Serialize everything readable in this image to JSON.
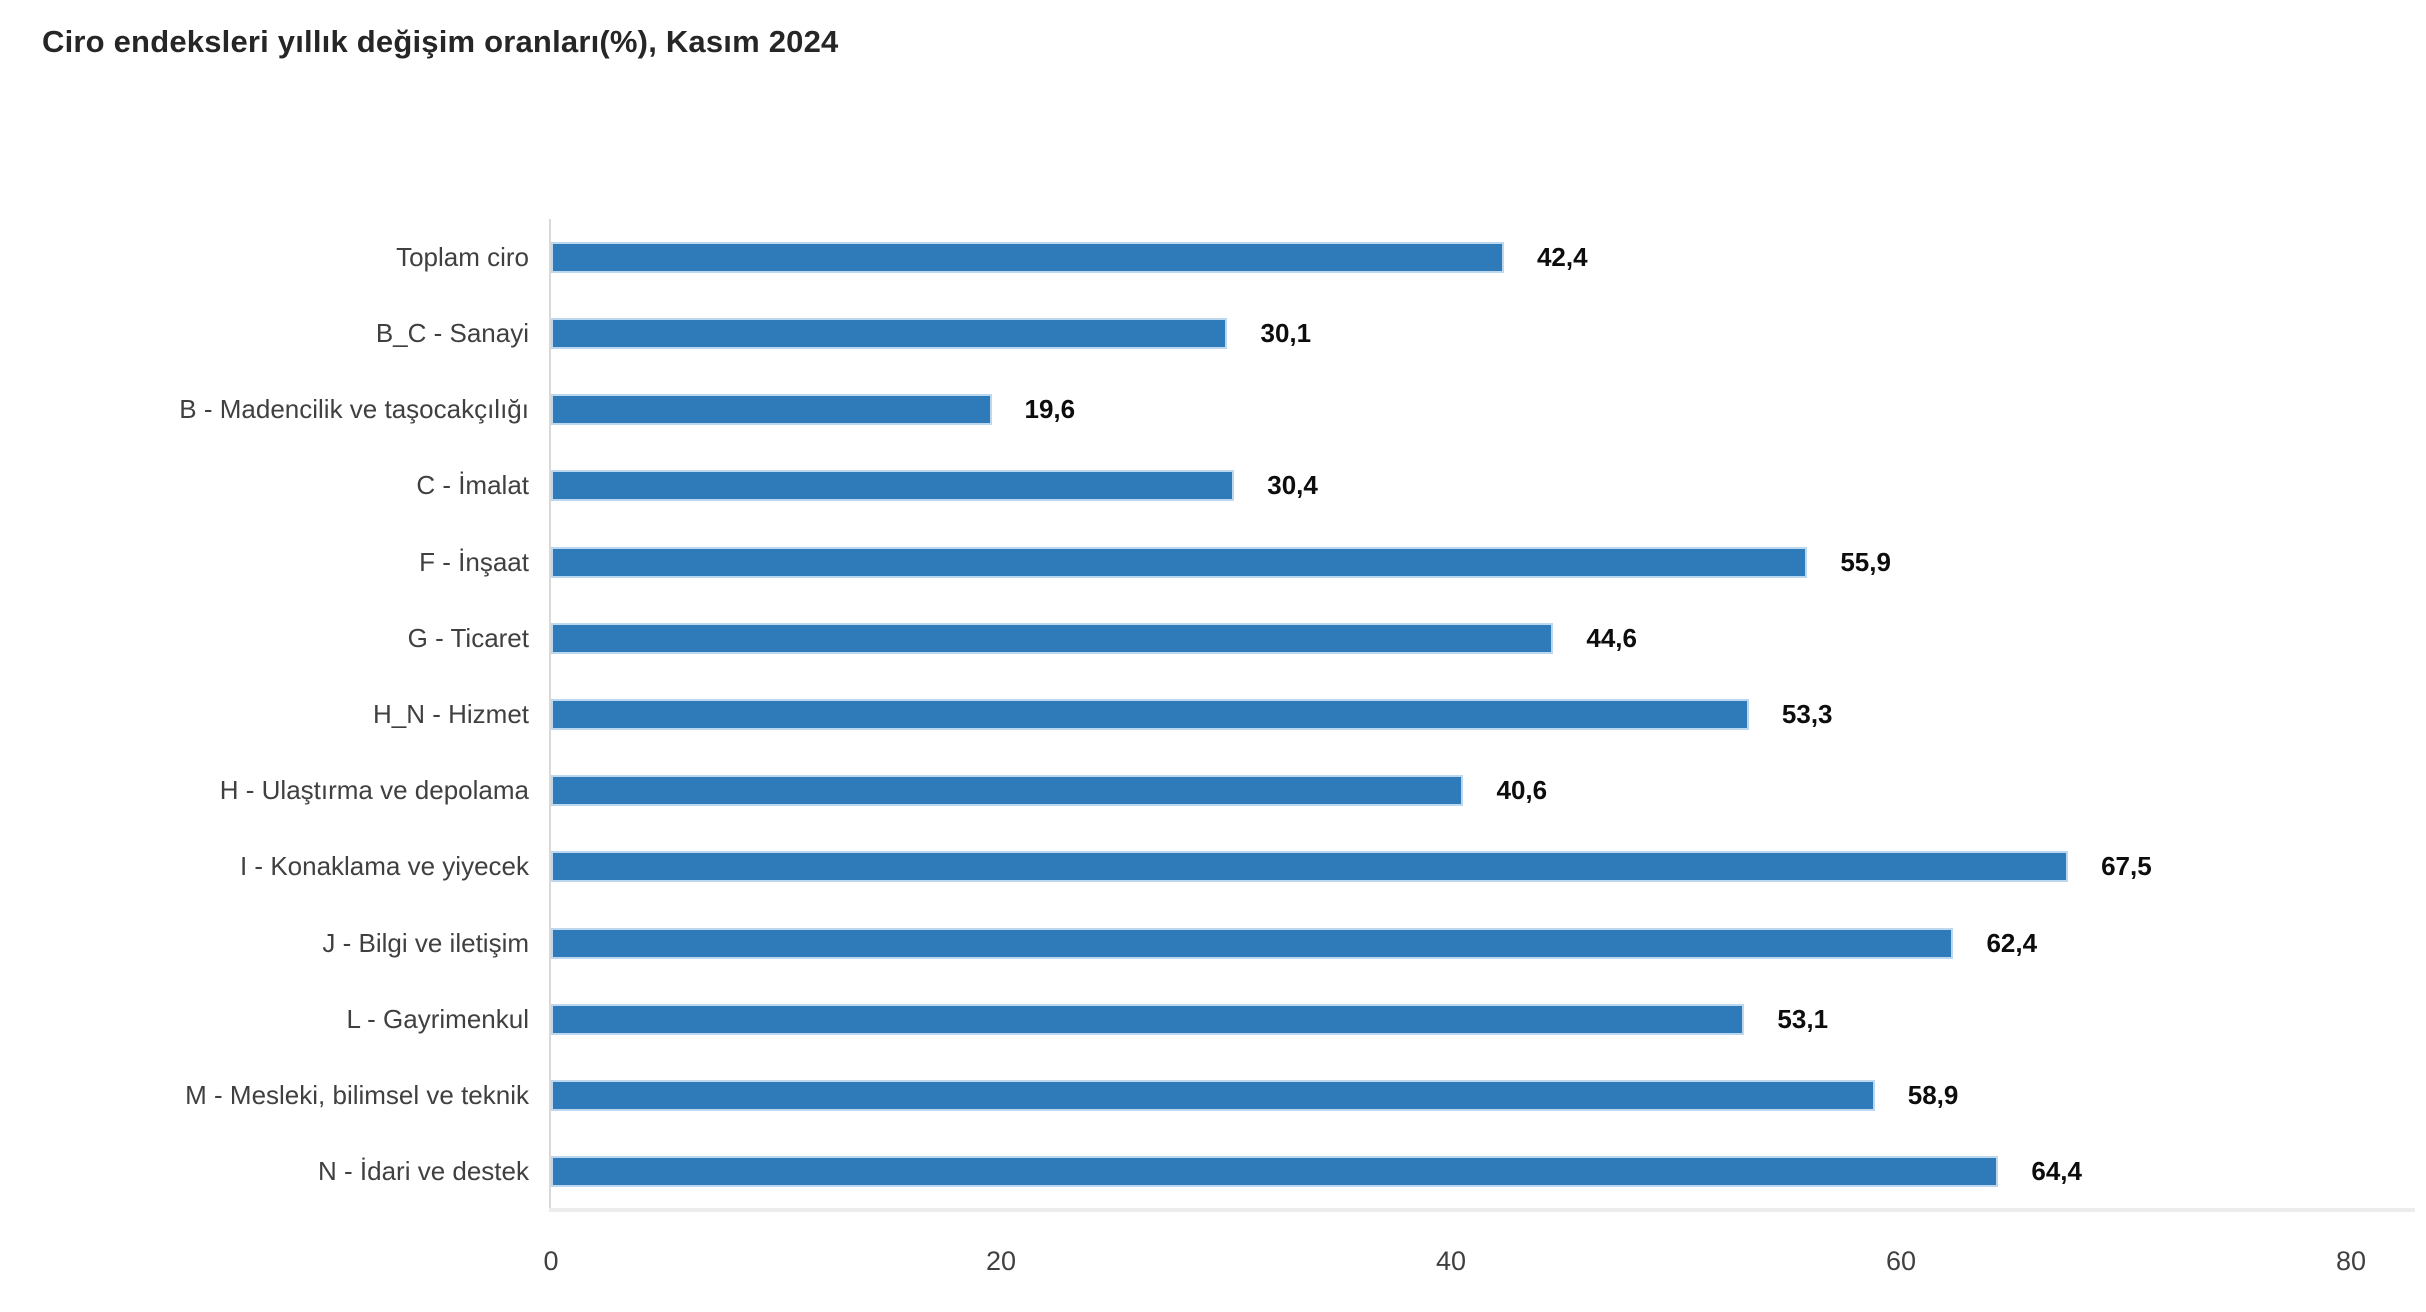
{
  "title": "Ciro endeksleri yıllık değişim oranları(%), Kasım 2024",
  "colors": {
    "bar_fill": "#2F7AB9",
    "bar_border": "#BDD7EE",
    "axis_line": "#D9D9D9",
    "baseline": "#ECECEC",
    "title_text": "#262626",
    "label_text": "#404040",
    "value_text": "#0D0D0D"
  },
  "chart_data": {
    "type": "bar",
    "orientation": "horizontal",
    "title": "Ciro endeksleri yıllık değişim oranları(%), Kasım 2024",
    "categories": [
      "Toplam ciro",
      "B_C - Sanayi",
      "B - Madencilik ve taşocakçılığı",
      "C - İmalat",
      "F - İnşaat",
      "G - Ticaret",
      "H_N - Hizmet",
      "H - Ulaştırma ve depolama",
      "I - Konaklama ve yiyecek",
      "J - Bilgi ve iletişim",
      "L - Gayrimenkul",
      "M - Mesleki, bilimsel ve teknik",
      "N - İdari ve destek"
    ],
    "values": [
      42.4,
      30.1,
      19.6,
      30.4,
      55.9,
      44.6,
      53.3,
      40.6,
      67.5,
      62.4,
      53.1,
      58.9,
      64.4
    ],
    "value_labels": [
      "42,4",
      "30,1",
      "19,6",
      "30,4",
      "55,9",
      "44,6",
      "53,3",
      "40,6",
      "67,5",
      "62,4",
      "53,1",
      "58,9",
      "64,4"
    ],
    "x_ticks": [
      "0",
      "20",
      "40",
      "60",
      "80"
    ],
    "x_tick_values": [
      0,
      20,
      40,
      60,
      80
    ],
    "xlim": [
      0,
      80
    ],
    "xlabel": "",
    "ylabel": "",
    "grid": false,
    "legend": false
  }
}
